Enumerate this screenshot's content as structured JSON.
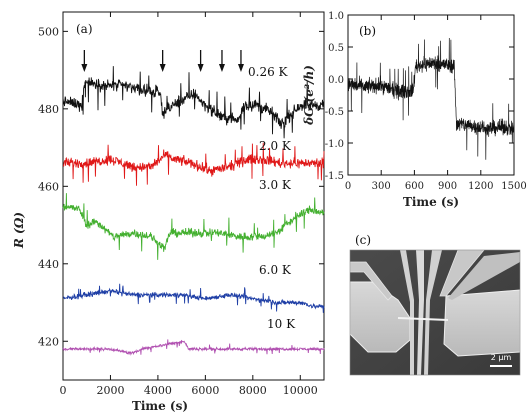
{
  "figure": {
    "panels": [
      {
        "tag": "(a)"
      },
      {
        "tag": "(b)"
      },
      {
        "tag": "(c)"
      }
    ],
    "scale_bar_label": "2 μm"
  },
  "chart_data": [
    {
      "id": "a",
      "type": "line",
      "xlabel": "Time (s)",
      "ylabel": "R (Ω)",
      "xlim": [
        0,
        11000
      ],
      "ylim": [
        410,
        505
      ],
      "xticks": [
        "0",
        "2000",
        "4000",
        "6000",
        "8000",
        "10000"
      ],
      "yticks": [
        "420",
        "440",
        "460",
        "480",
        "500"
      ],
      "grid": false,
      "arrows_at_time": [
        900,
        4200,
        5800,
        6700,
        7500
      ],
      "series": [
        {
          "name": "0.26 K",
          "color": "#111111",
          "noise": 2.2,
          "x": [
            0,
            800,
            900,
            1700,
            2600,
            3300,
            4100,
            4200,
            4900,
            5600,
            5800,
            6400,
            6700,
            7400,
            7600,
            8200,
            8800,
            9200,
            10000,
            11000
          ],
          "y": [
            482,
            481,
            487,
            486,
            486,
            485,
            484,
            479,
            482,
            484,
            482,
            479,
            478,
            477,
            481,
            481,
            479,
            476,
            481,
            481
          ]
        },
        {
          "name": "2.0 K",
          "color": "#e01818",
          "noise": 1.9,
          "x": [
            0,
            1000,
            2000,
            3000,
            3700,
            4300,
            4700,
            5400,
            6200,
            7000,
            7800,
            8400,
            9200,
            10000,
            11000
          ],
          "y": [
            466,
            466,
            467,
            465,
            465,
            468,
            467,
            466,
            464,
            465,
            467,
            467,
            466,
            466,
            466
          ]
        },
        {
          "name": "3.0 K",
          "color": "#44b030",
          "noise": 1.6,
          "x": [
            0,
            700,
            1000,
            1400,
            2100,
            3000,
            3700,
            4300,
            4500,
            5600,
            6500,
            7500,
            8300,
            9000,
            9800,
            10400,
            11000
          ],
          "y": [
            455,
            454,
            450,
            451,
            447,
            448,
            447,
            444,
            448,
            448,
            448,
            447,
            447,
            448,
            452,
            454,
            453
          ]
        },
        {
          "name": "6.0 K",
          "color": "#1f3fa6",
          "noise": 0.9,
          "x": [
            0,
            1000,
            2000,
            2900,
            4000,
            5000,
            6000,
            7000,
            8000,
            9000,
            10000,
            10600,
            11000
          ],
          "y": [
            431,
            432,
            433,
            432,
            432,
            432,
            431,
            432,
            431,
            430,
            430,
            429,
            429
          ]
        },
        {
          "name": "10 K",
          "color": "#b04fb0",
          "noise": 0.5,
          "x": [
            0,
            2000,
            2800,
            3000,
            3300,
            4200,
            5100,
            5300,
            6200,
            7000,
            8000,
            9000,
            10000,
            11000
          ],
          "y": [
            418,
            418,
            417,
            417,
            418,
            419,
            420,
            418,
            418,
            418,
            418,
            418,
            418,
            418
          ]
        }
      ]
    },
    {
      "id": "b",
      "type": "line",
      "xlabel": "Time (s)",
      "ylabel": "δG (e²/h)",
      "xlim": [
        0,
        1500
      ],
      "ylim": [
        -1.5,
        1.0
      ],
      "xticks": [
        "0",
        "300",
        "600",
        "900",
        "1200",
        "1500"
      ],
      "yticks": [
        "1.0",
        "0.5",
        "0.0",
        "-0.5",
        "-1.0",
        "-1.5"
      ],
      "grid": false,
      "series": [
        {
          "color": "#111111",
          "noise": 0.17,
          "x": [
            0,
            150,
            300,
            450,
            590,
            610,
            750,
            900,
            960,
            980,
            1100,
            1250,
            1400,
            1500
          ],
          "y": [
            -0.08,
            -0.12,
            -0.1,
            -0.2,
            -0.18,
            0.2,
            0.25,
            0.22,
            0.2,
            -0.7,
            -0.72,
            -0.78,
            -0.75,
            -0.78
          ]
        }
      ]
    }
  ]
}
